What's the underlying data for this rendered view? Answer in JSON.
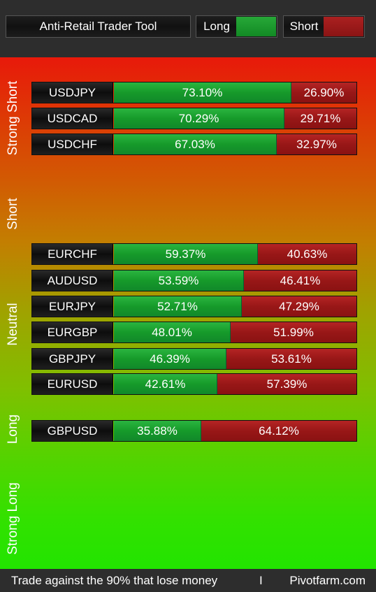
{
  "header": {
    "title": "Anti-Retail Trader Tool",
    "legend": [
      {
        "label": "Long",
        "color": "#1a9a2c"
      },
      {
        "label": "Short",
        "color": "#9c1a1a"
      }
    ]
  },
  "zones": [
    "Strong Short",
    "Short",
    "Neutral",
    "Long",
    "Strong Long"
  ],
  "chart_data": {
    "type": "bar",
    "orientation": "horizontal-stacked",
    "title": "Anti-Retail Trader Tool",
    "categories": [
      "USDJPY",
      "USDCAD",
      "USDCHF",
      "EURCHF",
      "AUDUSD",
      "EURJPY",
      "EURGBP",
      "GBPJPY",
      "EURUSD",
      "GBPUSD"
    ],
    "series": [
      {
        "name": "Long",
        "values": [
          73.1,
          70.29,
          67.03,
          59.37,
          53.59,
          52.71,
          48.01,
          46.39,
          42.61,
          35.88
        ],
        "labels": [
          "73.10%",
          "70.29%",
          "67.03%",
          "59.37%",
          "53.59%",
          "52.71%",
          "48.01%",
          "46.39%",
          "42.61%",
          "35.88%"
        ]
      },
      {
        "name": "Short",
        "values": [
          26.9,
          29.71,
          32.97,
          40.63,
          46.41,
          47.29,
          51.99,
          53.61,
          57.39,
          64.12
        ],
        "labels": [
          "26.90%",
          "29.71%",
          "32.97%",
          "40.63%",
          "46.41%",
          "47.29%",
          "51.99%",
          "53.61%",
          "57.39%",
          "64.12%"
        ]
      }
    ],
    "zone_assignment": [
      "Strong Short",
      "Strong Short",
      "Strong Short",
      "Neutral",
      "Neutral",
      "Neutral",
      "Neutral",
      "Neutral",
      "Neutral",
      "Long"
    ],
    "xlim": [
      0,
      100
    ]
  },
  "footer": {
    "tagline": "Trade against the 90% that lose money",
    "separator": "I",
    "site": "Pivotfarm.com"
  }
}
